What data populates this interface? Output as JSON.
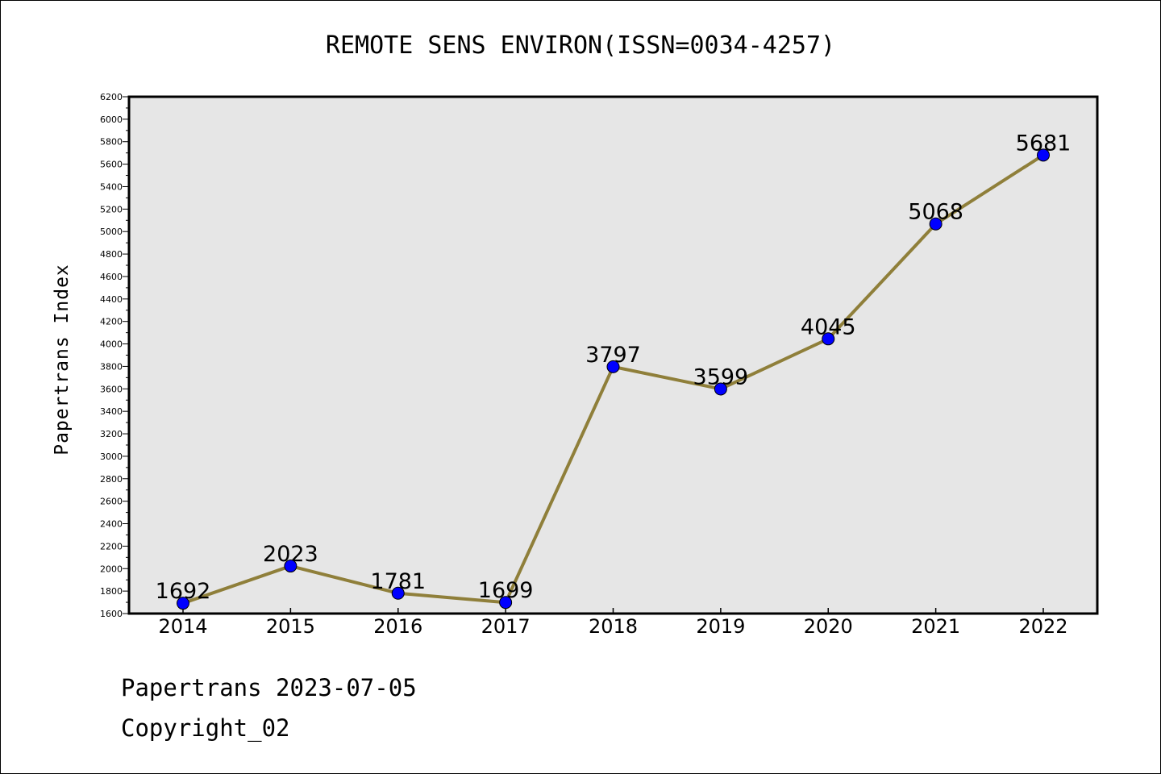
{
  "chart_data": {
    "type": "line",
    "title": "REMOTE SENS ENVIRON(ISSN=0034-4257)",
    "xlabel": "",
    "ylabel": "Papertrans Index",
    "categories": [
      "2014",
      "2015",
      "2016",
      "2017",
      "2018",
      "2019",
      "2020",
      "2021",
      "2022"
    ],
    "series": [
      {
        "values": [
          1692,
          2023,
          1781,
          1699,
          3797,
          3599,
          4045,
          5068,
          5681
        ]
      }
    ],
    "ylim": [
      1600,
      6200
    ],
    "yticks": [
      1600,
      1800,
      2000,
      2200,
      2400,
      2600,
      2800,
      3000,
      3200,
      3400,
      3600,
      3800,
      4000,
      4200,
      4400,
      4600,
      4800,
      5000,
      5200,
      5400,
      5600,
      5800,
      6000,
      6200
    ],
    "grid": false,
    "data_labels": true,
    "colors": {
      "line": "#8f7f3a",
      "marker": "#0000ff",
      "plot_background": "#e6e6e6"
    }
  },
  "footer": {
    "date_line": "Papertrans 2023-07-05",
    "copyright_line": "Copyright_02"
  }
}
